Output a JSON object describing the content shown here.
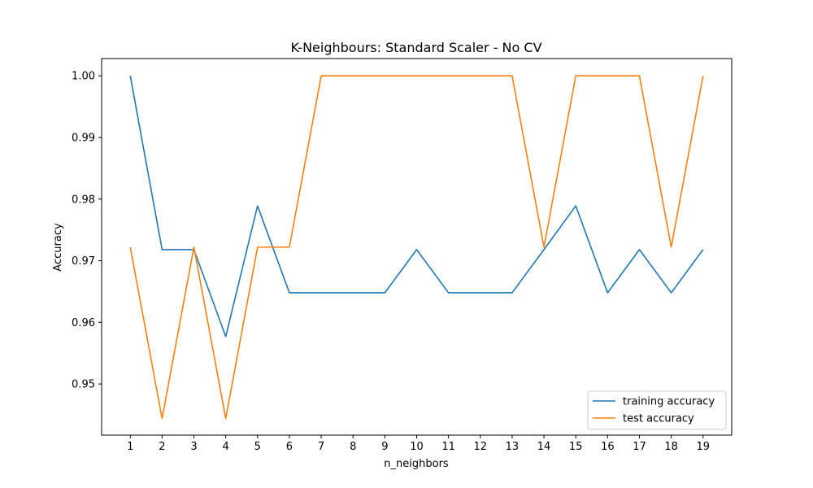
{
  "chart_data": {
    "type": "line",
    "title": "K-Neighbours: Standard Scaler - No CV",
    "xlabel": "n_neighbors",
    "ylabel": "Accuracy",
    "x": [
      1,
      2,
      3,
      4,
      5,
      6,
      7,
      8,
      9,
      10,
      11,
      12,
      13,
      14,
      15,
      16,
      17,
      18,
      19
    ],
    "xticks": [
      "1",
      "2",
      "3",
      "4",
      "5",
      "6",
      "7",
      "8",
      "9",
      "10",
      "11",
      "12",
      "13",
      "14",
      "15",
      "16",
      "17",
      "18",
      "19"
    ],
    "xlim": [
      0.1,
      19.9
    ],
    "ylim": [
      0.9417,
      1.0028
    ],
    "yticks": [
      0.95,
      0.96,
      0.97,
      0.98,
      0.99,
      1.0
    ],
    "ytick_labels": [
      "0.95",
      "0.96",
      "0.97",
      "0.98",
      "0.99",
      "1.00"
    ],
    "grid": false,
    "legend_position": "bottom-right",
    "series": [
      {
        "name": "training accuracy",
        "color": "#1f77b4",
        "values": [
          1.0,
          0.9718,
          0.9718,
          0.9577,
          0.9789,
          0.9648,
          0.9648,
          0.9648,
          0.9648,
          0.9718,
          0.9648,
          0.9648,
          0.9648,
          0.9718,
          0.9789,
          0.9648,
          0.9718,
          0.9648,
          0.9718
        ]
      },
      {
        "name": "test accuracy",
        "color": "#ff7f0e",
        "values": [
          0.9722,
          0.9444,
          0.9722,
          0.9444,
          0.9722,
          0.9722,
          1.0,
          1.0,
          1.0,
          1.0,
          1.0,
          1.0,
          1.0,
          0.9722,
          1.0,
          1.0,
          1.0,
          0.9722,
          1.0
        ]
      }
    ]
  }
}
